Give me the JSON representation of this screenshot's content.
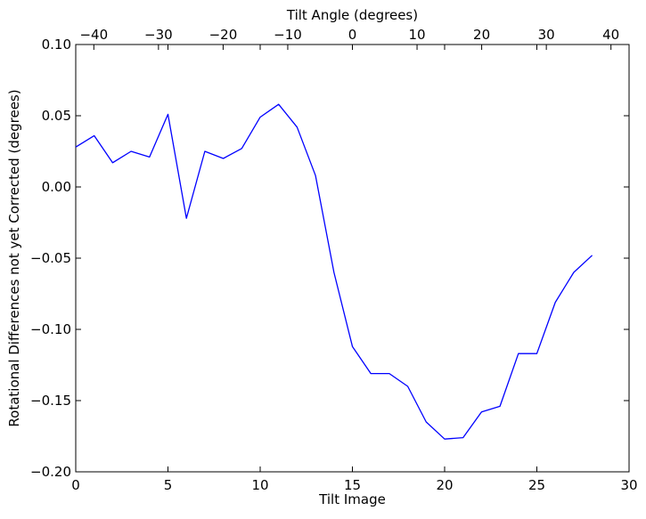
{
  "chart_data": {
    "type": "line",
    "xlabel": "Tilt Image",
    "ylabel": "Rotational Differences not yet Corrected (degrees)",
    "top_xlabel": "Tilt Angle (degrees)",
    "xlim": [
      0,
      30
    ],
    "ylim": [
      -0.2,
      0.1
    ],
    "top_xlim": [
      -42.8,
      42.8
    ],
    "x_ticks": [
      0,
      5,
      10,
      15,
      20,
      25,
      30
    ],
    "x_tick_labels": [
      "0",
      "5",
      "10",
      "15",
      "20",
      "25",
      "30"
    ],
    "y_ticks": [
      0.1,
      0.05,
      0.0,
      -0.05,
      -0.1,
      -0.15,
      -0.2
    ],
    "y_tick_labels": [
      "0.10",
      "0.05",
      "0.00",
      "−0.05",
      "−0.10",
      "−0.15",
      "−0.20"
    ],
    "top_x_ticks": [
      -40,
      -30,
      -20,
      -10,
      0,
      10,
      20,
      30,
      40
    ],
    "top_x_tick_labels": [
      "−40",
      "−30",
      "−20",
      "−10",
      "0",
      "10",
      "20",
      "30",
      "40"
    ],
    "grid": false,
    "series": [
      {
        "color": "#0000ff",
        "x": [
          0,
          1,
          2,
          3,
          4,
          5,
          6,
          7,
          8,
          9,
          10,
          11,
          12,
          13,
          14,
          15,
          16,
          17,
          18,
          19,
          20,
          21,
          22,
          23,
          24,
          25,
          26,
          27,
          28
        ],
        "values": [
          0.028,
          0.036,
          0.017,
          0.025,
          0.021,
          0.051,
          -0.022,
          0.025,
          0.02,
          0.027,
          0.049,
          0.058,
          0.042,
          0.008,
          -0.06,
          -0.112,
          -0.131,
          -0.131,
          -0.14,
          -0.165,
          -0.177,
          -0.176,
          -0.158,
          -0.154,
          -0.117,
          -0.117,
          -0.081,
          -0.06,
          -0.048
        ]
      }
    ]
  }
}
